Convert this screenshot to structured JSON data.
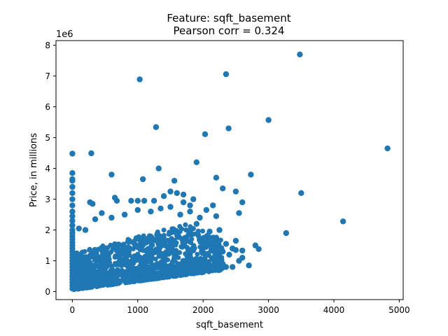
{
  "chart_data": {
    "type": "scatter",
    "title": "Feature: sqft_basement",
    "subtitle": "Pearson corr = 0.324",
    "xlabel": "sqft_basement",
    "ylabel": "Price, in millions",
    "y_offset_label": "1e6",
    "xlim": [
      -250,
      5060
    ],
    "ylim": [
      -260000,
      8150000
    ],
    "xticks": [
      0,
      1000,
      2000,
      3000,
      4000,
      5000
    ],
    "xtick_labels": [
      "0",
      "1000",
      "2000",
      "3000",
      "4000",
      "5000"
    ],
    "yticks": [
      0,
      1000000,
      2000000,
      3000000,
      4000000,
      5000000,
      6000000,
      7000000,
      8000000
    ],
    "ytick_labels": [
      "0",
      "1",
      "2",
      "3",
      "4",
      "5",
      "6",
      "7",
      "8"
    ],
    "grid": false,
    "marker_color": "#1f77b4",
    "series": [
      {
        "points": [
          [
            0,
            4480000
          ],
          [
            0,
            3850000
          ],
          [
            0,
            3650000
          ],
          [
            0,
            3600000
          ],
          [
            0,
            3400000
          ],
          [
            0,
            3200000
          ],
          [
            0,
            3000000
          ],
          [
            0,
            2800000
          ],
          [
            0,
            2600000
          ],
          [
            0,
            2450000
          ],
          [
            0,
            2300000
          ],
          [
            0,
            2150000
          ],
          [
            0,
            2000000
          ],
          [
            0,
            1900000
          ],
          [
            0,
            1800000
          ],
          [
            0,
            1700000
          ],
          [
            0,
            1600000
          ],
          [
            0,
            1500000
          ],
          [
            0,
            1400000
          ],
          [
            0,
            1300000
          ],
          [
            0,
            1200000
          ],
          [
            0,
            1100000
          ],
          [
            0,
            1000000
          ],
          [
            0,
            900000
          ],
          [
            0,
            800000
          ],
          [
            0,
            700000
          ],
          [
            0,
            600000
          ],
          [
            0,
            500000
          ],
          [
            0,
            400000
          ],
          [
            0,
            300000
          ],
          [
            0,
            200000
          ],
          [
            0,
            100000
          ],
          [
            1030,
            6890000
          ],
          [
            2350,
            7060000
          ],
          [
            3480,
            7700000
          ],
          [
            1280,
            5340000
          ],
          [
            2030,
            5110000
          ],
          [
            2390,
            5300000
          ],
          [
            3000,
            5570000
          ],
          [
            4820,
            4650000
          ],
          [
            290,
            4490000
          ],
          [
            1320,
            4000000
          ],
          [
            1900,
            4200000
          ],
          [
            600,
            3800000
          ],
          [
            1080,
            3650000
          ],
          [
            1560,
            3600000
          ],
          [
            2200,
            3700000
          ],
          [
            2730,
            3800000
          ],
          [
            3500,
            3200000
          ],
          [
            2300,
            3350000
          ],
          [
            2500,
            3250000
          ],
          [
            2600,
            2900000
          ],
          [
            2550,
            2550000
          ],
          [
            3270,
            1900000
          ],
          [
            4140,
            2280000
          ],
          [
            2800,
            1500000
          ],
          [
            2850,
            1380000
          ],
          [
            2600,
            1330000
          ],
          [
            2500,
            1650000
          ],
          [
            2700,
            850000
          ],
          [
            2600,
            1100000
          ],
          [
            2300,
            1300000
          ],
          [
            270,
            2900000
          ],
          [
            310,
            2850000
          ],
          [
            650,
            3050000
          ],
          [
            680,
            2950000
          ],
          [
            900,
            2950000
          ],
          [
            1000,
            2950000
          ],
          [
            1100,
            2950000
          ],
          [
            1250,
            2950000
          ],
          [
            1400,
            3100000
          ],
          [
            1500,
            3250000
          ],
          [
            1600,
            3200000
          ],
          [
            1700,
            3150000
          ],
          [
            1850,
            3000000
          ],
          [
            2050,
            2650000
          ],
          [
            2150,
            2800000
          ],
          [
            2200,
            2450000
          ],
          [
            1950,
            2400000
          ],
          [
            1800,
            2600000
          ],
          [
            1650,
            2500000
          ],
          [
            1500,
            2750000
          ],
          [
            1350,
            2700000
          ],
          [
            1200,
            2600000
          ],
          [
            1000,
            2650000
          ],
          [
            800,
            2500000
          ],
          [
            600,
            2400000
          ],
          [
            450,
            2550000
          ],
          [
            350,
            2350000
          ],
          [
            200,
            2000000
          ],
          [
            100,
            2050000
          ],
          [
            1700,
            2900000
          ],
          [
            1800,
            2800000
          ],
          [
            1900,
            2200000
          ],
          [
            2100,
            1950000
          ],
          [
            2250,
            2000000
          ],
          [
            2350,
            1550000
          ],
          [
            2450,
            1400000
          ],
          [
            2200,
            1250000
          ],
          [
            2000,
            1600000
          ],
          [
            2400,
            1200000
          ],
          [
            2300,
            900000
          ],
          [
            2350,
            800000
          ],
          [
            2450,
            800000
          ],
          [
            2550,
            1000000
          ],
          [
            2500,
            1350000
          ],
          [
            2150,
            1500000
          ]
        ]
      }
    ],
    "dense_region": {
      "x": [
        20,
        2300
      ],
      "y_bottom": [
        60000,
        700000
      ],
      "y_top": [
        1250000,
        2200000
      ]
    }
  }
}
